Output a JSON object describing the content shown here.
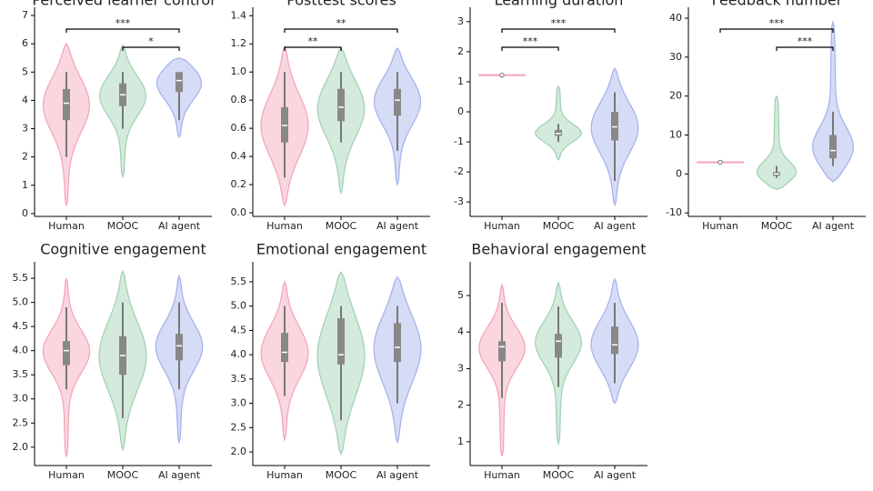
{
  "chart_data": [
    {
      "type": "violin",
      "title": "Perceived learner control",
      "categories": [
        "Human",
        "MOOC",
        "AI agent"
      ],
      "colors": [
        "#f4a3b5",
        "#9fd0b2",
        "#a3b0ec"
      ],
      "ylim": [
        -0.1,
        7.29
      ],
      "yticks": [
        0,
        1,
        2,
        3,
        4,
        5,
        6,
        7
      ],
      "stats": [
        {
          "violin": [
            0.3,
            6.0
          ],
          "whisker": [
            2,
            5
          ],
          "box": [
            3.3,
            4.4
          ],
          "median": 3.9
        },
        {
          "violin": [
            1.3,
            5.95
          ],
          "whisker": [
            3,
            5
          ],
          "box": [
            3.8,
            4.6
          ],
          "median": 4.2
        },
        {
          "violin": [
            2.7,
            5.5
          ],
          "whisker": [
            3.3,
            5
          ],
          "box": [
            4.3,
            5
          ],
          "median": 4.7
        }
      ],
      "annotations": [
        {
          "from": 0,
          "to": 2,
          "label": "***"
        },
        {
          "from": 1,
          "to": 2,
          "label": "*"
        }
      ]
    },
    {
      "type": "violin",
      "title": "Posttest scores",
      "categories": [
        "Human",
        "MOOC",
        "AI agent"
      ],
      "colors": [
        "#f4a3b5",
        "#9fd0b2",
        "#a3b0ec"
      ],
      "ylim": [
        -0.026,
        1.46
      ],
      "yticks": [
        {
          "value": 0,
          "label": "0.0"
        },
        0.2,
        0.4,
        0.6,
        0.8,
        {
          "value": 1,
          "label": "1.0"
        },
        1.2,
        1.4
      ],
      "stats": [
        {
          "violin": [
            0.05,
            1.18
          ],
          "whisker": [
            0.25,
            1.0
          ],
          "box": [
            0.5,
            0.75
          ],
          "median": 0.62
        },
        {
          "violin": [
            0.14,
            1.17
          ],
          "whisker": [
            0.5,
            1.0
          ],
          "box": [
            0.65,
            0.88
          ],
          "median": 0.75
        },
        {
          "violin": [
            0.2,
            1.17
          ],
          "whisker": [
            0.44,
            1.0
          ],
          "box": [
            0.69,
            0.88
          ],
          "median": 0.8
        }
      ],
      "annotations": [
        {
          "from": 0,
          "to": 2,
          "label": "**"
        },
        {
          "from": 0,
          "to": 1,
          "label": "**"
        }
      ]
    },
    {
      "type": "violin",
      "title": "Learning duration",
      "categories": [
        "Human",
        "MOOC",
        "AI agent"
      ],
      "colors": [
        "#f4a3b5",
        "#9fd0b2",
        "#a3b0ec"
      ],
      "ylim": [
        -3.48,
        3.48
      ],
      "yticks": [
        -3,
        -2,
        -1,
        0,
        1,
        2,
        3
      ],
      "stats": [
        {
          "violin": [
            1.22,
            1.22
          ],
          "whisker": [
            1.22,
            1.22
          ],
          "box": [
            1.22,
            1.22
          ],
          "median": 1.22
        },
        {
          "violin": [
            -1.6,
            0.85
          ],
          "whisker": [
            -1,
            -0.4
          ],
          "box": [
            -0.8,
            -0.6
          ],
          "median": -0.72
        },
        {
          "violin": [
            -3.1,
            1.45
          ],
          "whisker": [
            -2.3,
            0.65
          ],
          "box": [
            -0.95,
            0
          ],
          "median": -0.5
        }
      ],
      "annotations": [
        {
          "from": 0,
          "to": 2,
          "label": "***"
        },
        {
          "from": 0,
          "to": 1,
          "label": "***"
        }
      ]
    },
    {
      "type": "violin",
      "title": "Feedback number",
      "categories": [
        "Human",
        "MOOC",
        "AI agent"
      ],
      "colors": [
        "#f4a3b5",
        "#9fd0b2",
        "#a3b0ec"
      ],
      "ylim": [
        -10.9,
        42.8
      ],
      "yticks": [
        -10,
        0,
        10,
        20,
        30,
        40
      ],
      "stats": [
        {
          "violin": [
            3,
            3
          ],
          "whisker": [
            3,
            3
          ],
          "box": [
            3,
            3
          ],
          "median": 3
        },
        {
          "violin": [
            -4,
            20
          ],
          "whisker": [
            -1,
            2
          ],
          "box": [
            -0.5,
            0.5
          ],
          "median": 0
        },
        {
          "violin": [
            -2,
            39
          ],
          "whisker": [
            2,
            16
          ],
          "box": [
            4,
            10
          ],
          "median": 6
        }
      ],
      "annotations": [
        {
          "from": 0,
          "to": 2,
          "label": "***"
        },
        {
          "from": 1,
          "to": 2,
          "label": "***"
        }
      ]
    },
    {
      "type": "violin",
      "title": "Cognitive engagement",
      "categories": [
        "Human",
        "MOOC",
        "AI agent"
      ],
      "colors": [
        "#f4a3b5",
        "#9fd0b2",
        "#a3b0ec"
      ],
      "ylim": [
        1.62,
        5.84
      ],
      "yticks": [
        {
          "value": 2,
          "label": "2.0"
        },
        2.5,
        {
          "value": 3,
          "label": "3.0"
        },
        3.5,
        {
          "value": 4,
          "label": "4.0"
        },
        4.5,
        {
          "value": 5,
          "label": "5.0"
        },
        5.5
      ],
      "stats": [
        {
          "violin": [
            1.8,
            5.5
          ],
          "whisker": [
            3.2,
            4.9
          ],
          "box": [
            3.7,
            4.2
          ],
          "median": 4.0
        },
        {
          "violin": [
            1.95,
            5.65
          ],
          "whisker": [
            2.6,
            5.0
          ],
          "box": [
            3.5,
            4.3
          ],
          "median": 3.9
        },
        {
          "violin": [
            2.1,
            5.55
          ],
          "whisker": [
            3.2,
            5.0
          ],
          "box": [
            3.8,
            4.35
          ],
          "median": 4.1
        }
      ],
      "annotations": []
    },
    {
      "type": "violin",
      "title": "Emotional engagement",
      "categories": [
        "Human",
        "MOOC",
        "AI agent"
      ],
      "colors": [
        "#f4a3b5",
        "#9fd0b2",
        "#a3b0ec"
      ],
      "ylim": [
        1.72,
        5.91
      ],
      "yticks": [
        {
          "value": 2,
          "label": "2.0"
        },
        2.5,
        {
          "value": 3,
          "label": "3.0"
        },
        3.5,
        {
          "value": 4,
          "label": "4.0"
        },
        4.5,
        {
          "value": 5,
          "label": "5.0"
        },
        5.5
      ],
      "stats": [
        {
          "violin": [
            2.25,
            5.5
          ],
          "whisker": [
            3.15,
            5.0
          ],
          "box": [
            3.85,
            4.45
          ],
          "median": 4.05
        },
        {
          "violin": [
            1.95,
            5.7
          ],
          "whisker": [
            2.65,
            5.0
          ],
          "box": [
            3.8,
            4.75
          ],
          "median": 4.0
        },
        {
          "violin": [
            2.2,
            5.6
          ],
          "whisker": [
            3.0,
            5.0
          ],
          "box": [
            3.85,
            4.65
          ],
          "median": 4.15
        }
      ],
      "annotations": []
    },
    {
      "type": "violin",
      "title": "Behavioral engagement",
      "categories": [
        "Human",
        "MOOC",
        "AI agent"
      ],
      "colors": [
        "#f4a3b5",
        "#9fd0b2",
        "#a3b0ec"
      ],
      "ylim": [
        0.35,
        5.92
      ],
      "yticks": [
        1,
        2,
        3,
        4,
        5
      ],
      "stats": [
        {
          "violin": [
            0.6,
            5.3
          ],
          "whisker": [
            2.2,
            4.8
          ],
          "box": [
            3.2,
            3.75
          ],
          "median": 3.6
        },
        {
          "violin": [
            0.95,
            5.35
          ],
          "whisker": [
            2.5,
            4.7
          ],
          "box": [
            3.3,
            3.95
          ],
          "median": 3.75
        },
        {
          "violin": [
            2.05,
            5.45
          ],
          "whisker": [
            2.6,
            4.8
          ],
          "box": [
            3.4,
            4.15
          ],
          "median": 3.65
        }
      ],
      "annotations": []
    }
  ]
}
